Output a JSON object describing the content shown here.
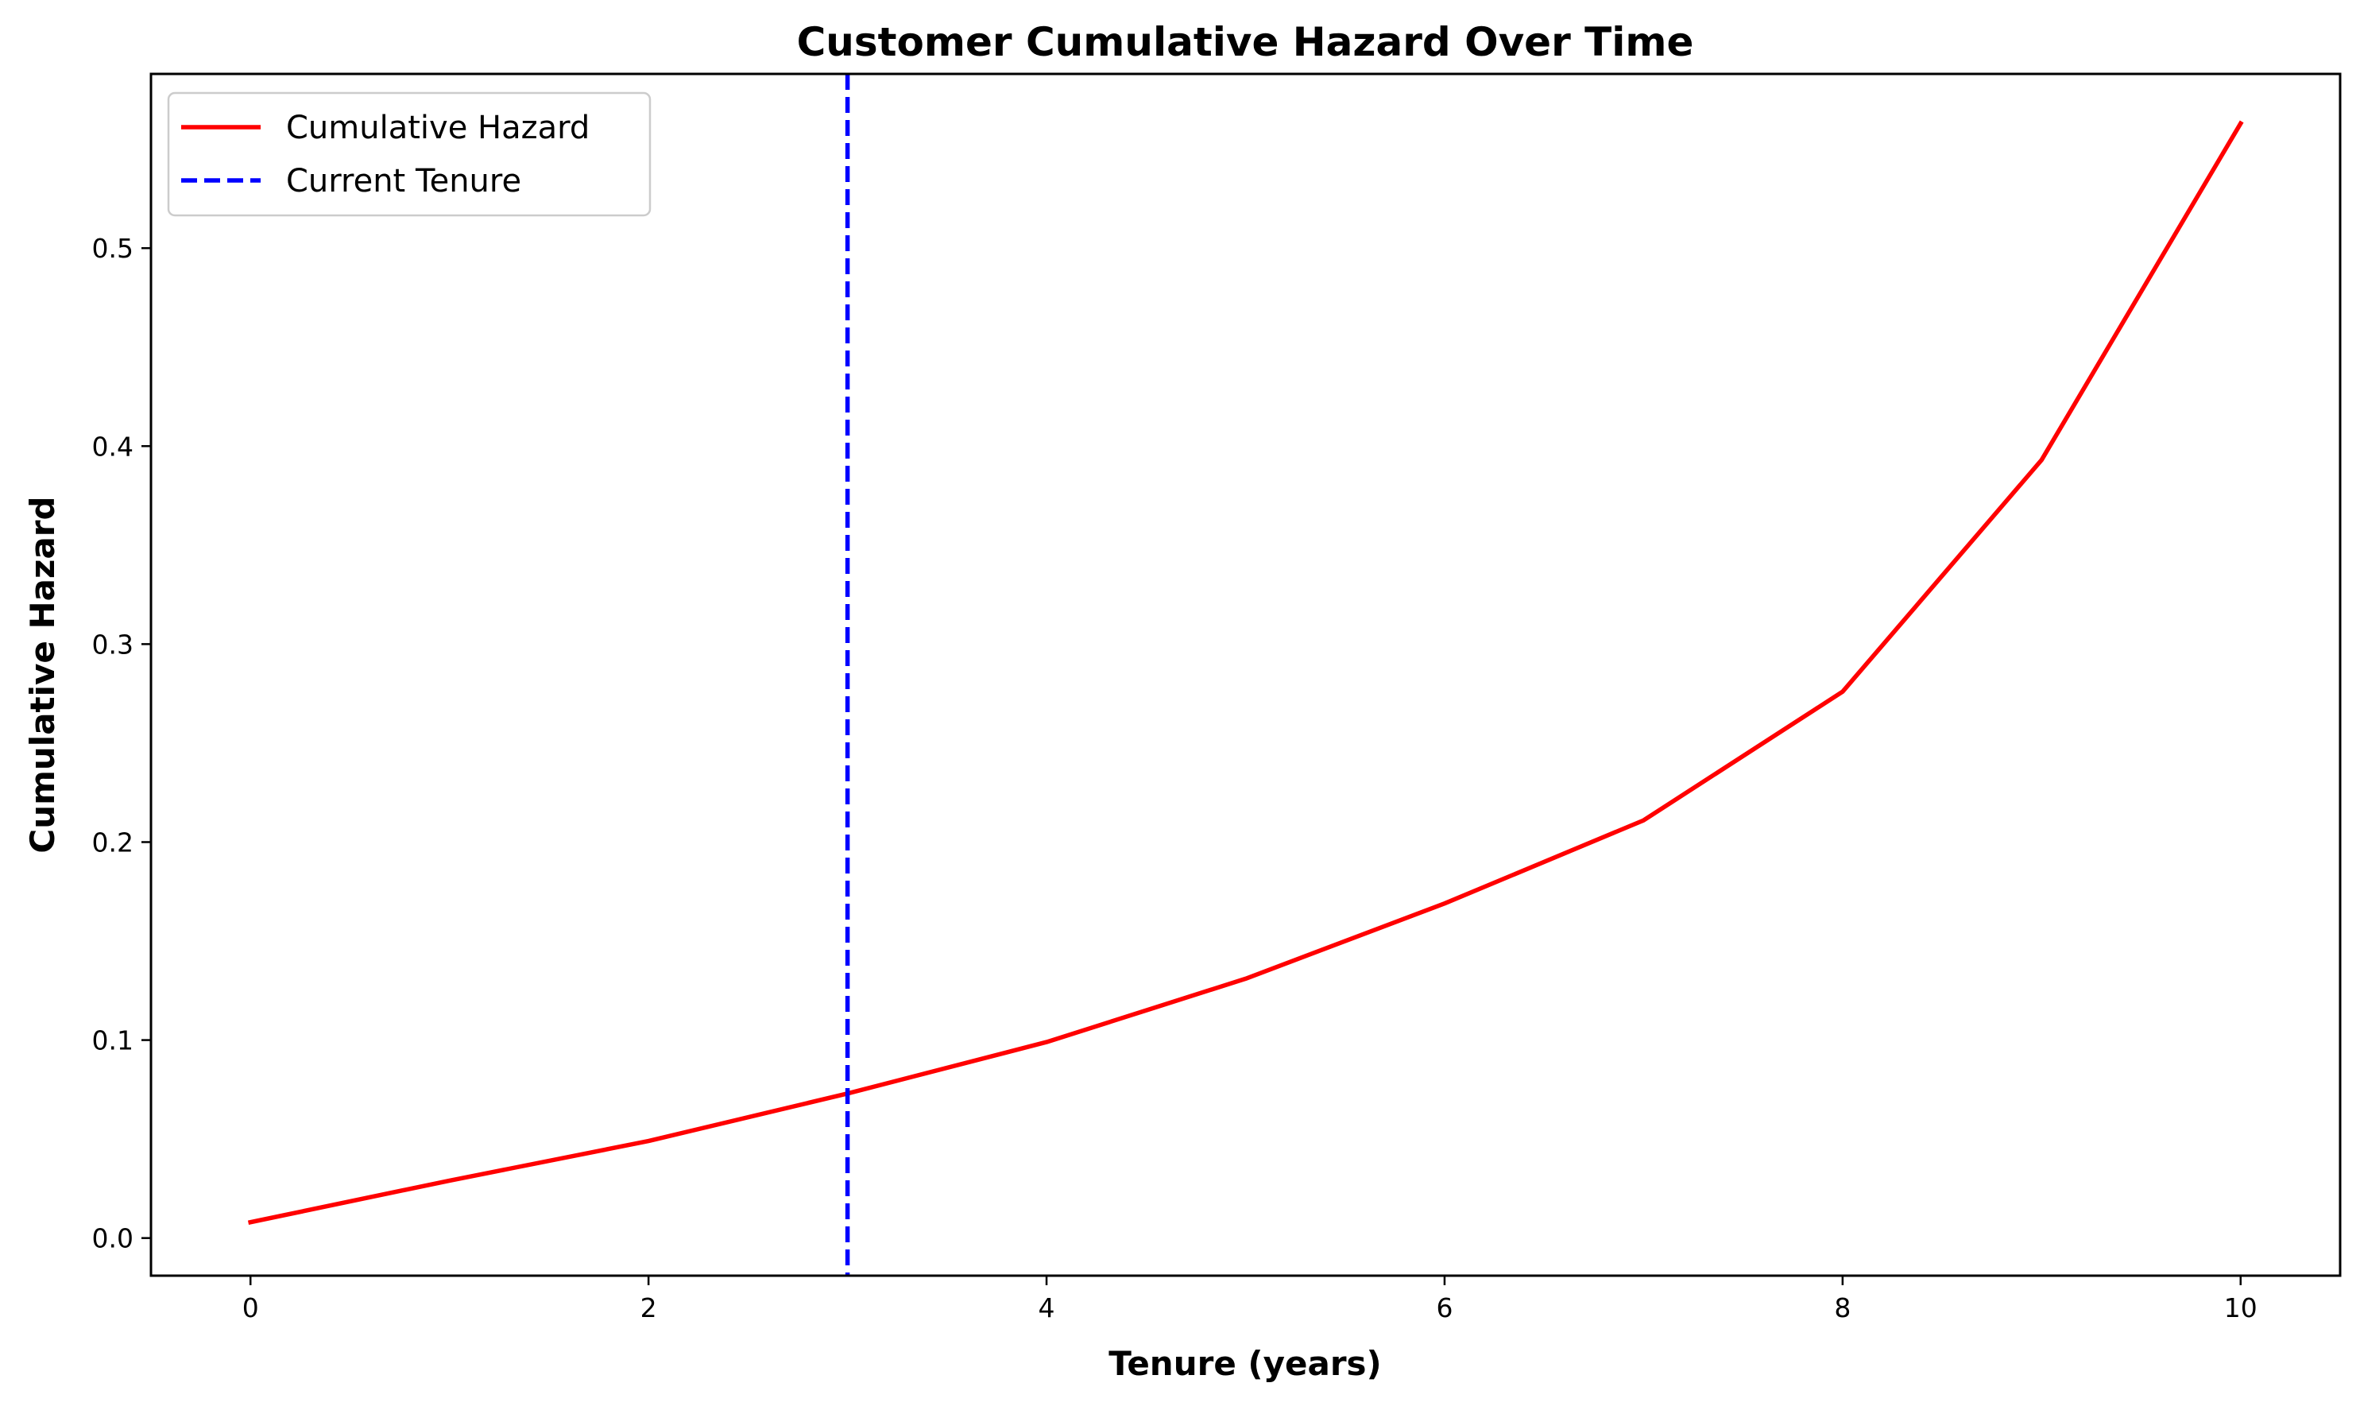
{
  "chart_data": {
    "type": "line",
    "title": "Customer Cumulative Hazard Over Time",
    "xlabel": "Tenure (years)",
    "ylabel": "Cumulative Hazard",
    "xlim": [
      -0.5,
      10.5
    ],
    "ylim": [
      -0.019,
      0.588
    ],
    "xticks": [
      0,
      2,
      4,
      6,
      8,
      10
    ],
    "xtick_labels": [
      "0",
      "2",
      "4",
      "6",
      "8",
      "10"
    ],
    "yticks": [
      0.0,
      0.1,
      0.2,
      0.3,
      0.4,
      0.5
    ],
    "ytick_labels": [
      "0.0",
      "0.1",
      "0.2",
      "0.3",
      "0.4",
      "0.5"
    ],
    "grid": false,
    "legend_position": "upper-left",
    "series": [
      {
        "name": "Cumulative Hazard",
        "color": "#ff0000",
        "style": "solid",
        "x": [
          0,
          1,
          2,
          3,
          4,
          5,
          6,
          7,
          8,
          9,
          10
        ],
        "y": [
          0.008,
          0.029,
          0.049,
          0.073,
          0.099,
          0.131,
          0.169,
          0.211,
          0.276,
          0.393,
          0.563
        ]
      }
    ],
    "vlines": [
      {
        "name": "Current Tenure",
        "x": 3,
        "color": "#0000ff",
        "style": "dashed"
      }
    ]
  }
}
